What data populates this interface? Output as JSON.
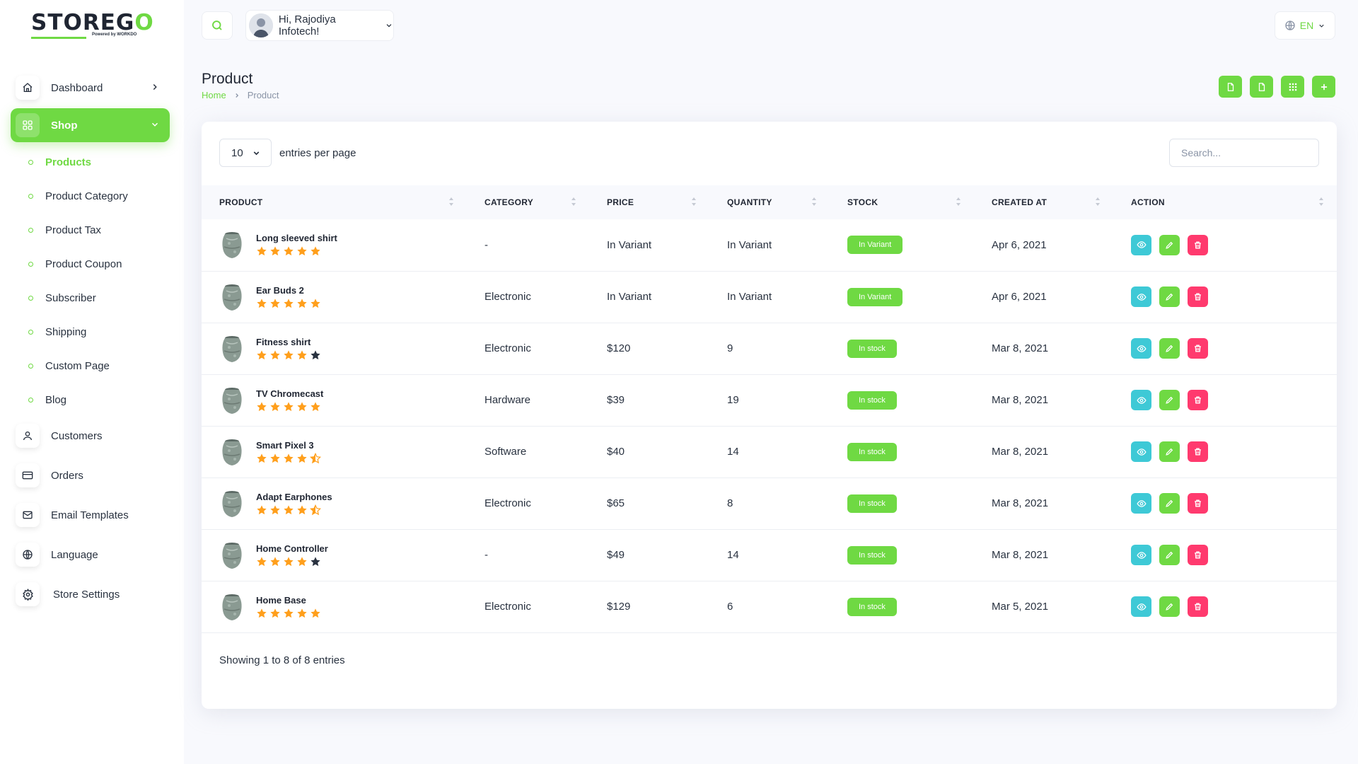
{
  "brand": {
    "logo_text_a": "STOREG",
    "logo_text_b": "O",
    "powered_by": "Powered by WORKDO"
  },
  "sidebar": {
    "items": [
      {
        "label": "Dashboard",
        "icon": "home-icon"
      },
      {
        "label": "Shop",
        "icon": "grid-icon"
      },
      {
        "label": "Customers",
        "icon": "user-icon"
      },
      {
        "label": "Orders",
        "icon": "credit-card-icon"
      },
      {
        "label": "Email Templates",
        "icon": "mail-icon"
      },
      {
        "label": "Language",
        "icon": "globe-icon"
      },
      {
        "label": "Store Settings",
        "icon": "gear-icon"
      }
    ],
    "shop_sub": [
      {
        "label": "Products"
      },
      {
        "label": "Product Category"
      },
      {
        "label": "Product Tax"
      },
      {
        "label": "Product Coupon"
      },
      {
        "label": "Subscriber"
      },
      {
        "label": "Shipping"
      },
      {
        "label": "Custom Page"
      },
      {
        "label": "Blog"
      }
    ]
  },
  "header": {
    "greeting": "Hi, Rajodiya Infotech!",
    "language": "EN"
  },
  "page": {
    "title": "Product",
    "breadcrumb_home": "Home",
    "breadcrumb_current": "Product"
  },
  "table": {
    "per_page": "10",
    "per_page_label": "entries per page",
    "search_placeholder": "Search...",
    "columns": [
      "PRODUCT",
      "CATEGORY",
      "PRICE",
      "QUANTITY",
      "STOCK",
      "CREATED AT",
      "ACTION"
    ],
    "rows": [
      {
        "name": "Long sleeved shirt",
        "rating": 5,
        "category": "-",
        "price": "In Variant",
        "quantity": "In Variant",
        "stock": "In Variant",
        "created": "Apr 6, 2021"
      },
      {
        "name": "Ear Buds 2",
        "rating": 5,
        "category": "Electronic",
        "price": "In Variant",
        "quantity": "In Variant",
        "stock": "In Variant",
        "created": "Apr 6, 2021"
      },
      {
        "name": "Fitness shirt",
        "rating": 4,
        "category": "Electronic",
        "price": "$120",
        "quantity": "9",
        "stock": "In stock",
        "created": "Mar 8, 2021"
      },
      {
        "name": "TV Chromecast",
        "rating": 5,
        "category": "Hardware",
        "price": "$39",
        "quantity": "19",
        "stock": "In stock",
        "created": "Mar 8, 2021"
      },
      {
        "name": "Smart Pixel 3",
        "rating": 4.5,
        "category": "Software",
        "price": "$40",
        "quantity": "14",
        "stock": "In stock",
        "created": "Mar 8, 2021"
      },
      {
        "name": "Adapt Earphones",
        "rating": 4.5,
        "category": "Electronic",
        "price": "$65",
        "quantity": "8",
        "stock": "In stock",
        "created": "Mar 8, 2021"
      },
      {
        "name": "Home Controller",
        "rating": 4,
        "category": "-",
        "price": "$49",
        "quantity": "14",
        "stock": "In stock",
        "created": "Mar 8, 2021"
      },
      {
        "name": "Home Base",
        "rating": 5,
        "category": "Electronic",
        "price": "$129",
        "quantity": "6",
        "stock": "In stock",
        "created": "Mar 5, 2021"
      }
    ],
    "footer": "Showing 1 to 8 of 8 entries"
  },
  "colors": {
    "accent": "#6fd943",
    "view": "#3ec9d6",
    "delete": "#ff3a6e",
    "star": "#ff9f1c",
    "star_empty": "#293240"
  }
}
